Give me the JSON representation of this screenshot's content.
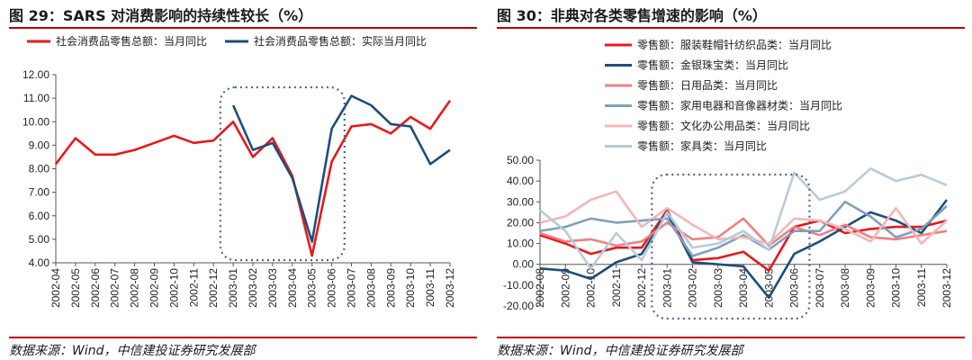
{
  "left": {
    "title": "图 29：SARS 对消费影响的持续性较长（%）",
    "source": "数据来源：Wind，中信建投证券研究发展部",
    "chart_data": {
      "type": "line",
      "categories": [
        "2002-04",
        "2002-05",
        "2002-06",
        "2002-07",
        "2002-08",
        "2002-09",
        "2002-10",
        "2002-11",
        "2002-12",
        "2003-01",
        "2003-02",
        "2003-03",
        "2003-04",
        "2003-05",
        "2003-06",
        "2003-07",
        "2003-08",
        "2003-09",
        "2003-10",
        "2003-11",
        "2003-12"
      ],
      "ylim": [
        4,
        12
      ],
      "yticks": [
        "4.00",
        "5.00",
        "6.00",
        "7.00",
        "8.00",
        "9.00",
        "10.00",
        "11.00",
        "12.00"
      ],
      "legend_position": "top",
      "series": [
        {
          "name": "社会消费品零售总额：当月同比",
          "color": "#e8191c",
          "values": [
            8.2,
            9.3,
            8.6,
            8.6,
            8.8,
            9.1,
            9.4,
            9.1,
            9.2,
            10.0,
            8.5,
            9.3,
            7.7,
            4.3,
            8.3,
            9.8,
            9.9,
            9.5,
            10.2,
            9.7,
            10.9
          ]
        },
        {
          "name": "社会消费品零售总额：实际当月同比",
          "color": "#1f4e79",
          "values": [
            null,
            null,
            null,
            null,
            null,
            null,
            null,
            null,
            null,
            10.7,
            8.8,
            9.1,
            7.6,
            4.9,
            9.7,
            11.1,
            10.7,
            9.9,
            9.8,
            8.2,
            8.8
          ]
        }
      ]
    }
  },
  "right": {
    "title": "图 30：非典对各类零售增速的影响（%）",
    "source": "数据来源：Wind，中信建投证券研究发展部",
    "chart_data": {
      "type": "line",
      "categories": [
        "2002-08",
        "2002-09",
        "2002-10",
        "2002-11",
        "2002-12",
        "2003-01",
        "2003-02",
        "2003-03",
        "2003-04",
        "2003-05",
        "2003-06",
        "2003-07",
        "2003-08",
        "2003-09",
        "2003-10",
        "2003-11",
        "2003-12"
      ],
      "ylim": [
        -20,
        50
      ],
      "yticks": [
        "-20.00",
        "-10.00",
        "0.00",
        "10.00",
        "20.00",
        "30.00",
        "40.00",
        "50.00"
      ],
      "legend_position": "top",
      "series": [
        {
          "name": "零售额：服装鞋帽针纺织品类：当月同比",
          "color": "#e8191c",
          "values": [
            14,
            10,
            5,
            8,
            8,
            26,
            2,
            3,
            6,
            -3,
            18,
            21,
            15,
            17,
            18,
            18,
            21
          ]
        },
        {
          "name": "零售额：金银珠宝类：当月同比",
          "color": "#1f4e79",
          "values": [
            -2,
            -3,
            -7,
            1,
            5,
            25,
            1,
            0,
            -1,
            -16,
            5,
            11,
            18,
            25,
            21,
            15,
            31
          ]
        },
        {
          "name": "零售额：日用品类：当月同比",
          "color": "#f08080",
          "values": [
            15,
            11,
            12,
            9,
            11,
            20,
            12,
            13,
            22,
            9,
            18,
            14,
            19,
            13,
            12,
            14,
            16
          ]
        },
        {
          "name": "零售额：家用电器和音像器材类：当月同比",
          "color": "#7f9fbf",
          "values": [
            16,
            18,
            22,
            20,
            21,
            22,
            4,
            8,
            14,
            7,
            16,
            16,
            30,
            23,
            13,
            17,
            28
          ]
        },
        {
          "name": "零售额：文化办公用品类：当月同比",
          "color": "#f4b6b6",
          "values": [
            20,
            23,
            31,
            35,
            18,
            27,
            19,
            12,
            13,
            10,
            22,
            21,
            17,
            11,
            27,
            10,
            21
          ]
        },
        {
          "name": "零售额：家具类：当月同比",
          "color": "#b7cbdc",
          "values": [
            26,
            16,
            -2,
            15,
            2,
            25,
            8,
            10,
            16,
            7,
            44,
            31,
            35,
            46,
            40,
            43,
            38
          ]
        }
      ]
    }
  }
}
